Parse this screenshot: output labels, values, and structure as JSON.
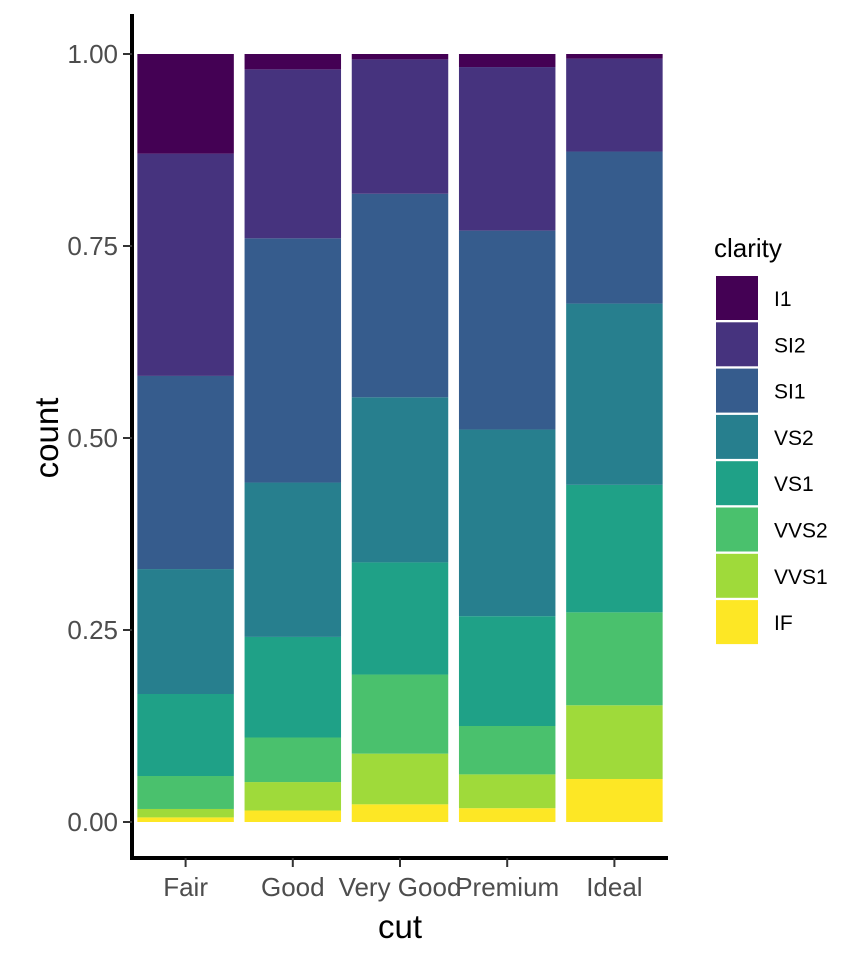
{
  "chart_data": {
    "type": "bar",
    "stacked": true,
    "position": "fill",
    "xlabel": "cut",
    "ylabel": "count",
    "categories": [
      "Fair",
      "Good",
      "Very Good",
      "Premium",
      "Ideal"
    ],
    "ylim": [
      0,
      1
    ],
    "yticks": [
      "0.00",
      "0.25",
      "0.50",
      "0.75",
      "1.00"
    ],
    "grid": false,
    "legend": {
      "title": "clarity",
      "position": "right"
    },
    "series": [
      {
        "name": "I1",
        "color": "#440154",
        "values": [
          0.13,
          0.02,
          0.007,
          0.017,
          0.006
        ]
      },
      {
        "name": "SI2",
        "color": "#46337E",
        "values": [
          0.29,
          0.22,
          0.175,
          0.213,
          0.121
        ]
      },
      {
        "name": "SI1",
        "color": "#365C8D",
        "values": [
          0.252,
          0.318,
          0.265,
          0.259,
          0.198
        ]
      },
      {
        "name": "VS2",
        "color": "#277F8E",
        "values": [
          0.163,
          0.201,
          0.215,
          0.243,
          0.236
        ]
      },
      {
        "name": "VS1",
        "color": "#1FA187",
        "values": [
          0.107,
          0.131,
          0.146,
          0.143,
          0.166
        ]
      },
      {
        "name": "VVS2",
        "color": "#4AC16D",
        "values": [
          0.043,
          0.058,
          0.103,
          0.063,
          0.121
        ]
      },
      {
        "name": "VVS1",
        "color": "#9FDA3A",
        "values": [
          0.011,
          0.037,
          0.066,
          0.044,
          0.096
        ]
      },
      {
        "name": "IF",
        "color": "#FDE725",
        "values": [
          0.006,
          0.015,
          0.023,
          0.018,
          0.056
        ]
      }
    ]
  }
}
